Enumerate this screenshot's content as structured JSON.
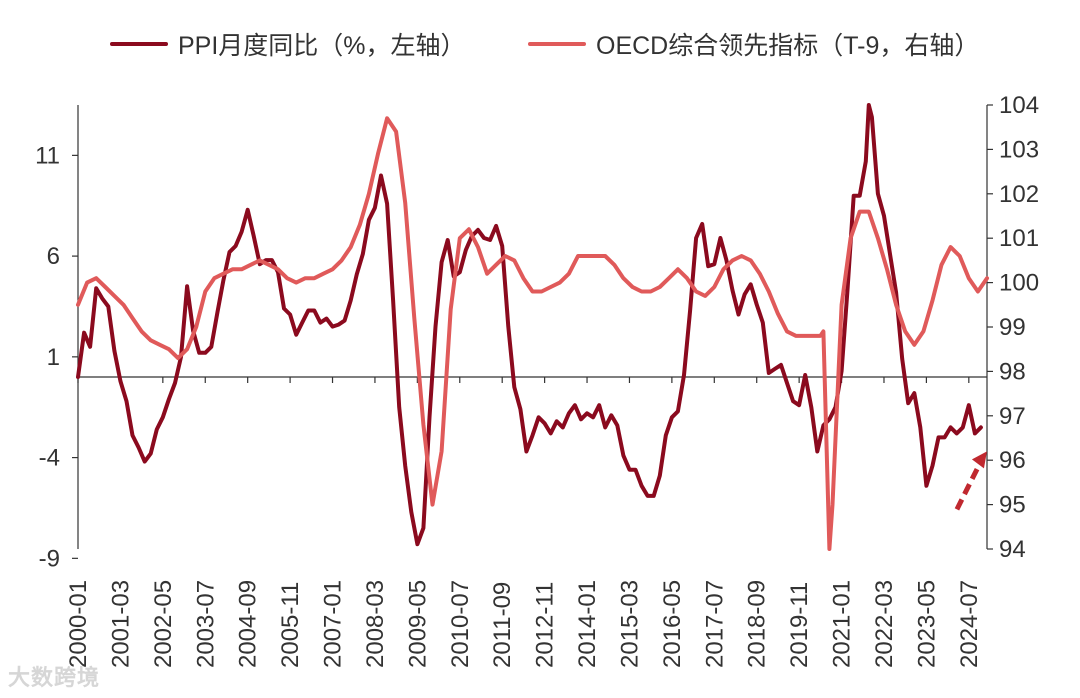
{
  "legend": {
    "ppi_label": "PPI月度同比（%，左轴）",
    "oecd_label": "OECD综合领先指标（T-9，右轴）"
  },
  "watermark": "大数跨境",
  "colors": {
    "ppi": "#8b0a1e",
    "oecd": "#e05a5a",
    "axis": "#333333",
    "arrow": "#c0282f"
  },
  "chart_data": {
    "type": "line",
    "title": "",
    "x_tick_labels": [
      "2000-01",
      "2001-03",
      "2002-05",
      "2003-07",
      "2004-09",
      "2005-11",
      "2007-01",
      "2008-03",
      "2009-05",
      "2010-07",
      "2011-09",
      "2012-11",
      "2014-01",
      "2015-03",
      "2016-05",
      "2017-07",
      "2018-09",
      "2019-11",
      "2021-01",
      "2022-03",
      "2023-05",
      "2024-07"
    ],
    "x_range": [
      "2000-01",
      "2025-01"
    ],
    "y_left": {
      "label": "PPI月度同比（%）",
      "ticks": [
        11,
        6,
        1,
        -4,
        -9
      ],
      "range": [
        -9,
        13.5
      ]
    },
    "y_right": {
      "label": "OECD综合领先指标（T-9）",
      "ticks": [
        104,
        103,
        102,
        101,
        100,
        99,
        98,
        97,
        96,
        95,
        94
      ],
      "range": [
        94,
        104
      ]
    },
    "grid": false,
    "legend_position": "top",
    "annotations": [
      {
        "type": "arrow",
        "pointing_to": "2024-11",
        "note": ""
      }
    ],
    "series": [
      {
        "name": "PPI月度同比（%，左轴）",
        "axis": "left",
        "x": [
          "2000-01",
          "2000-03",
          "2000-05",
          "2000-07",
          "2000-09",
          "2000-11",
          "2001-01",
          "2001-03",
          "2001-05",
          "2001-07",
          "2001-09",
          "2001-11",
          "2002-01",
          "2002-03",
          "2002-05",
          "2002-07",
          "2002-09",
          "2002-11",
          "2003-01",
          "2003-03",
          "2003-05",
          "2003-07",
          "2003-09",
          "2003-11",
          "2004-01",
          "2004-03",
          "2004-05",
          "2004-07",
          "2004-09",
          "2004-11",
          "2005-01",
          "2005-03",
          "2005-05",
          "2005-07",
          "2005-09",
          "2005-11",
          "2006-01",
          "2006-03",
          "2006-05",
          "2006-07",
          "2006-09",
          "2006-11",
          "2007-01",
          "2007-03",
          "2007-05",
          "2007-07",
          "2007-09",
          "2007-11",
          "2008-01",
          "2008-03",
          "2008-05",
          "2008-07",
          "2008-09",
          "2008-11",
          "2009-01",
          "2009-03",
          "2009-05",
          "2009-07",
          "2009-09",
          "2009-11",
          "2010-01",
          "2010-03",
          "2010-05",
          "2010-07",
          "2010-09",
          "2010-11",
          "2011-01",
          "2011-03",
          "2011-05",
          "2011-07",
          "2011-09",
          "2011-11",
          "2012-01",
          "2012-03",
          "2012-05",
          "2012-07",
          "2012-09",
          "2012-11",
          "2013-01",
          "2013-03",
          "2013-05",
          "2013-07",
          "2013-09",
          "2013-11",
          "2014-01",
          "2014-03",
          "2014-05",
          "2014-07",
          "2014-09",
          "2014-11",
          "2015-01",
          "2015-03",
          "2015-05",
          "2015-07",
          "2015-09",
          "2015-11",
          "2016-01",
          "2016-03",
          "2016-05",
          "2016-07",
          "2016-09",
          "2016-11",
          "2017-01",
          "2017-03",
          "2017-05",
          "2017-07",
          "2017-09",
          "2017-11",
          "2018-01",
          "2018-03",
          "2018-05",
          "2018-07",
          "2018-09",
          "2018-11",
          "2019-01",
          "2019-03",
          "2019-05",
          "2019-07",
          "2019-09",
          "2019-11",
          "2020-01",
          "2020-03",
          "2020-05",
          "2020-07",
          "2020-09",
          "2020-11",
          "2021-01",
          "2021-03",
          "2021-05",
          "2021-07",
          "2021-09",
          "2021-10",
          "2021-11",
          "2022-01",
          "2022-03",
          "2022-05",
          "2022-07",
          "2022-09",
          "2022-11",
          "2023-01",
          "2023-03",
          "2023-05",
          "2023-07",
          "2023-09",
          "2023-11",
          "2024-01",
          "2024-03",
          "2024-05",
          "2024-07",
          "2024-09",
          "2024-11"
        ],
        "values": [
          0.0,
          2.2,
          1.5,
          4.4,
          3.9,
          3.5,
          1.3,
          -0.2,
          -1.2,
          -2.9,
          -3.5,
          -4.2,
          -3.8,
          -2.6,
          -2.0,
          -1.1,
          -0.3,
          1.0,
          4.5,
          2.3,
          1.2,
          1.2,
          1.5,
          3.2,
          4.8,
          6.2,
          6.5,
          7.2,
          8.3,
          7.0,
          5.6,
          5.8,
          5.8,
          5.2,
          3.4,
          3.1,
          2.1,
          2.7,
          3.3,
          3.3,
          2.7,
          2.9,
          2.5,
          2.6,
          2.8,
          3.8,
          5.1,
          6.1,
          7.8,
          8.4,
          10.0,
          8.6,
          3.8,
          -1.5,
          -4.4,
          -6.7,
          -8.3,
          -7.5,
          -2.0,
          2.5,
          5.7,
          6.8,
          5.0,
          5.2,
          6.3,
          7.0,
          7.3,
          6.9,
          6.8,
          7.5,
          6.5,
          2.5,
          -0.5,
          -1.6,
          -3.7,
          -2.9,
          -2.0,
          -2.3,
          -2.8,
          -2.2,
          -2.5,
          -1.8,
          -1.4,
          -2.1,
          -1.8,
          -2.0,
          -1.4,
          -2.5,
          -1.9,
          -2.4,
          -3.9,
          -4.6,
          -4.6,
          -5.4,
          -5.9,
          -5.9,
          -4.9,
          -2.9,
          -2.0,
          -1.7,
          0.1,
          3.3,
          6.9,
          7.6,
          5.5,
          5.6,
          6.9,
          5.8,
          4.3,
          3.1,
          4.1,
          4.6,
          3.6,
          2.7,
          0.2,
          0.4,
          0.6,
          -0.3,
          -1.2,
          -1.4,
          0.1,
          -1.5,
          -3.7,
          -2.4,
          -2.1,
          -1.5,
          0.3,
          4.4,
          9.0,
          9.0,
          10.7,
          13.5,
          12.9,
          9.1,
          8.0,
          6.1,
          4.2,
          0.9,
          -1.3,
          -0.8,
          -2.5,
          -5.4,
          -4.4,
          -3.0,
          -3.0,
          -2.5,
          -2.8,
          -2.5,
          -1.4,
          -2.8,
          -2.5
        ]
      },
      {
        "name": "OECD综合领先指标（T-9，右轴）",
        "axis": "right",
        "x": [
          "2000-01",
          "2000-04",
          "2000-07",
          "2000-10",
          "2001-01",
          "2001-04",
          "2001-07",
          "2001-10",
          "2002-01",
          "2002-04",
          "2002-07",
          "2002-10",
          "2003-01",
          "2003-04",
          "2003-07",
          "2003-10",
          "2004-01",
          "2004-04",
          "2004-07",
          "2004-10",
          "2005-01",
          "2005-04",
          "2005-07",
          "2005-10",
          "2006-01",
          "2006-04",
          "2006-07",
          "2006-10",
          "2007-01",
          "2007-04",
          "2007-07",
          "2007-10",
          "2008-01",
          "2008-04",
          "2008-07",
          "2008-10",
          "2009-01",
          "2009-04",
          "2009-07",
          "2009-10",
          "2010-01",
          "2010-04",
          "2010-07",
          "2010-10",
          "2011-01",
          "2011-04",
          "2011-07",
          "2011-10",
          "2012-01",
          "2012-04",
          "2012-07",
          "2012-10",
          "2013-01",
          "2013-04",
          "2013-07",
          "2013-10",
          "2014-01",
          "2014-04",
          "2014-07",
          "2014-10",
          "2015-01",
          "2015-04",
          "2015-07",
          "2015-10",
          "2016-01",
          "2016-04",
          "2016-07",
          "2016-10",
          "2017-01",
          "2017-04",
          "2017-07",
          "2017-10",
          "2018-01",
          "2018-04",
          "2018-07",
          "2018-10",
          "2019-01",
          "2019-04",
          "2019-07",
          "2019-10",
          "2020-01",
          "2020-04",
          "2020-06",
          "2020-07",
          "2020-09",
          "2020-10",
          "2021-01",
          "2021-04",
          "2021-07",
          "2021-10",
          "2022-01",
          "2022-04",
          "2022-07",
          "2022-10",
          "2023-01",
          "2023-04",
          "2023-07",
          "2023-10",
          "2024-01",
          "2024-04",
          "2024-07",
          "2024-10",
          "2025-01"
        ],
        "values": [
          99.5,
          100.0,
          100.1,
          99.9,
          99.7,
          99.5,
          99.2,
          98.9,
          98.7,
          98.6,
          98.5,
          98.3,
          98.5,
          99.0,
          99.8,
          100.1,
          100.2,
          100.3,
          100.3,
          100.4,
          100.5,
          100.4,
          100.3,
          100.1,
          100.0,
          100.1,
          100.1,
          100.2,
          100.3,
          100.5,
          100.8,
          101.3,
          102.0,
          102.9,
          103.7,
          103.4,
          101.8,
          99.2,
          96.8,
          95.0,
          96.2,
          99.4,
          101.0,
          101.2,
          100.8,
          100.2,
          100.4,
          100.6,
          100.5,
          100.1,
          99.8,
          99.8,
          99.9,
          100.0,
          100.2,
          100.6,
          100.6,
          100.6,
          100.6,
          100.4,
          100.1,
          99.9,
          99.8,
          99.8,
          99.9,
          100.1,
          100.3,
          100.1,
          99.8,
          99.7,
          99.9,
          100.3,
          100.5,
          100.6,
          100.5,
          100.2,
          99.8,
          99.3,
          98.9,
          98.8,
          98.8,
          98.8,
          98.8,
          98.9,
          94.0,
          95.0,
          99.5,
          101.0,
          101.6,
          101.6,
          101.0,
          100.3,
          99.5,
          98.9,
          98.6,
          98.9,
          99.6,
          100.4,
          100.8,
          100.6,
          100.1,
          99.8,
          100.1
        ]
      }
    ]
  }
}
